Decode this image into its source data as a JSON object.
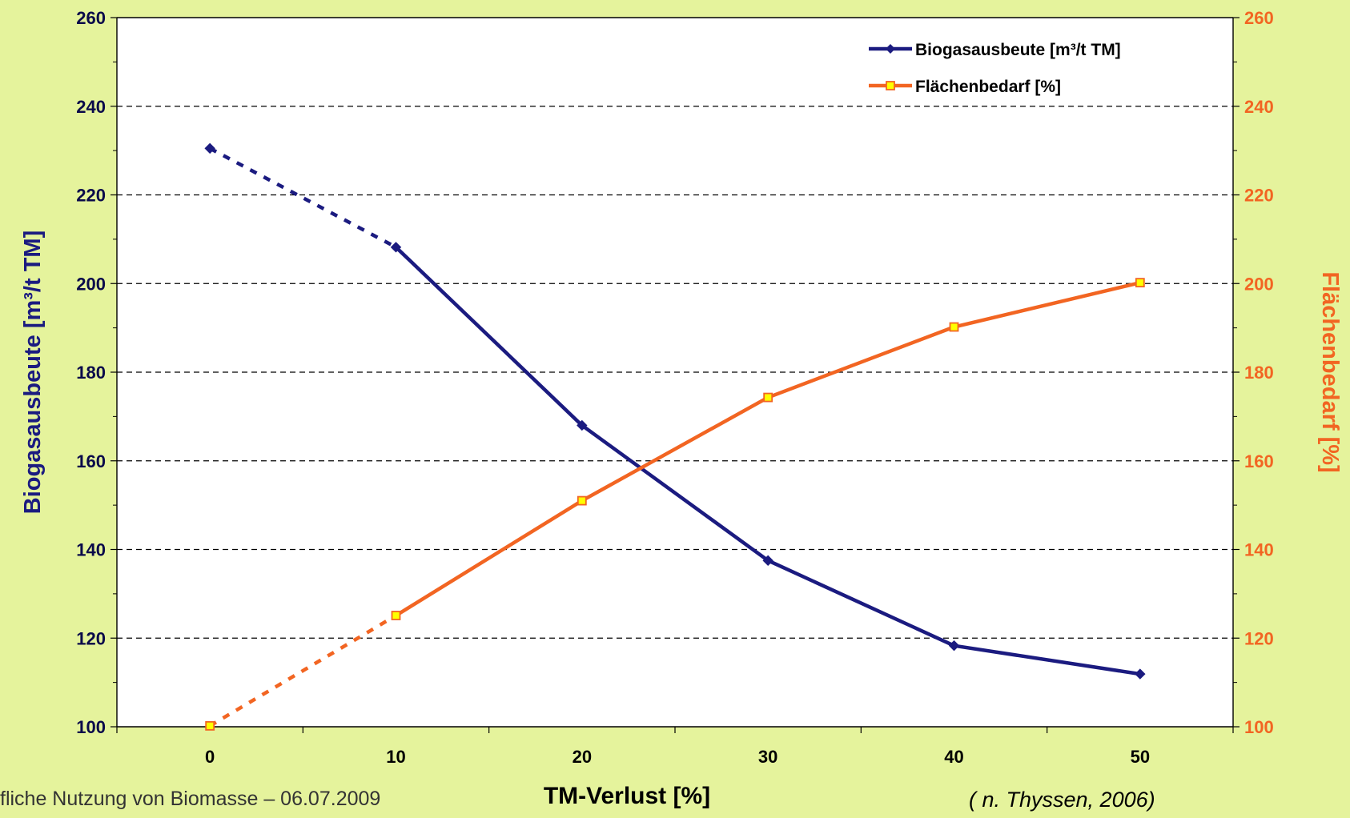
{
  "colors": {
    "background": "#e5f39c",
    "plot_background": "#ffffff",
    "series_blue": "#1b1b80",
    "series_orange": "#f26522",
    "marker_fill_orange": "#ffff00"
  },
  "footer": {
    "left_text": "fliche Nutzung von Biomasse – 06.07.2009",
    "right_text": "( n. Thyssen, 2006)"
  },
  "chart_data": {
    "type": "line",
    "title": "",
    "xlabel": "TM-Verlust [%]",
    "ylabel": "Biogasausbeute [m³/t TM]",
    "y2label": "Flächenbedarf [%]",
    "categories": [
      "0",
      "10",
      "20",
      "30",
      "40",
      "50"
    ],
    "ylim": [
      100,
      260
    ],
    "y2lim": [
      100,
      260
    ],
    "yticks": [
      "100",
      "120",
      "140",
      "160",
      "180",
      "200",
      "220",
      "240",
      "260"
    ],
    "y2ticks": [
      "100",
      "120",
      "140",
      "160",
      "180",
      "200",
      "220",
      "240",
      "260"
    ],
    "grid": true,
    "legend_position": "top-right",
    "series": [
      {
        "name": "Biogasausbeute [m³/t TM]",
        "axis": "left",
        "values": [
          230.5,
          208.2,
          168.0,
          137.5,
          118.3,
          111.9
        ],
        "dashed_between": [
          0,
          1
        ],
        "marker": "diamond"
      },
      {
        "name": "Flächenbedarf [%]",
        "axis": "right",
        "values": [
          100.2,
          125.1,
          151.0,
          174.3,
          190.2,
          200.2
        ],
        "dashed_between": [
          0,
          1
        ],
        "marker": "square"
      }
    ]
  }
}
